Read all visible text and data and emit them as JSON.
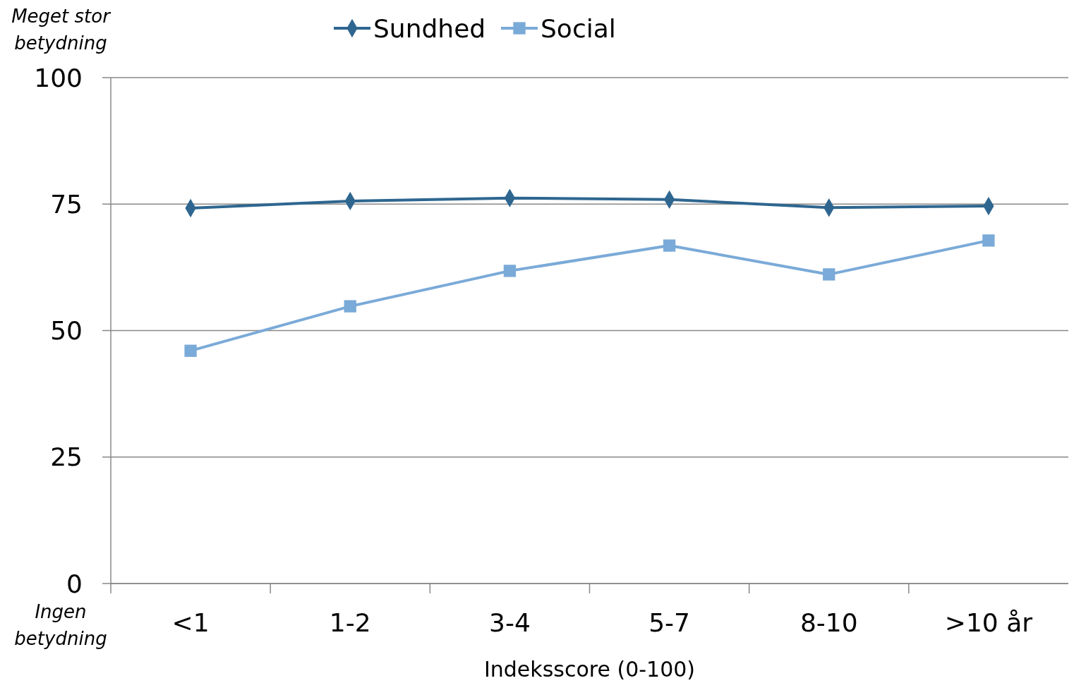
{
  "chart_data": {
    "type": "line",
    "xlabel": "Indeksscore (0-100)",
    "annotations": [
      "Meget stor betydning",
      "Ingen betydning"
    ],
    "categories": [
      "<1",
      "1-2",
      "3-4",
      "5-7",
      "8-10",
      ">10 år"
    ],
    "series": [
      {
        "name": "Sundhed",
        "color": "#2e6690",
        "marker": "diamond",
        "values": [
          74.2,
          75.6,
          76.2,
          75.9,
          74.3,
          74.6
        ]
      },
      {
        "name": "Social",
        "color": "#7aaad8",
        "marker": "square",
        "values": [
          46.0,
          54.8,
          61.8,
          66.8,
          61.1,
          67.8
        ]
      }
    ],
    "ylim": [
      0,
      100
    ],
    "yticks": [
      0,
      25,
      50,
      75,
      100
    ],
    "grid": "y",
    "legend": "top",
    "line_style": "solid"
  }
}
